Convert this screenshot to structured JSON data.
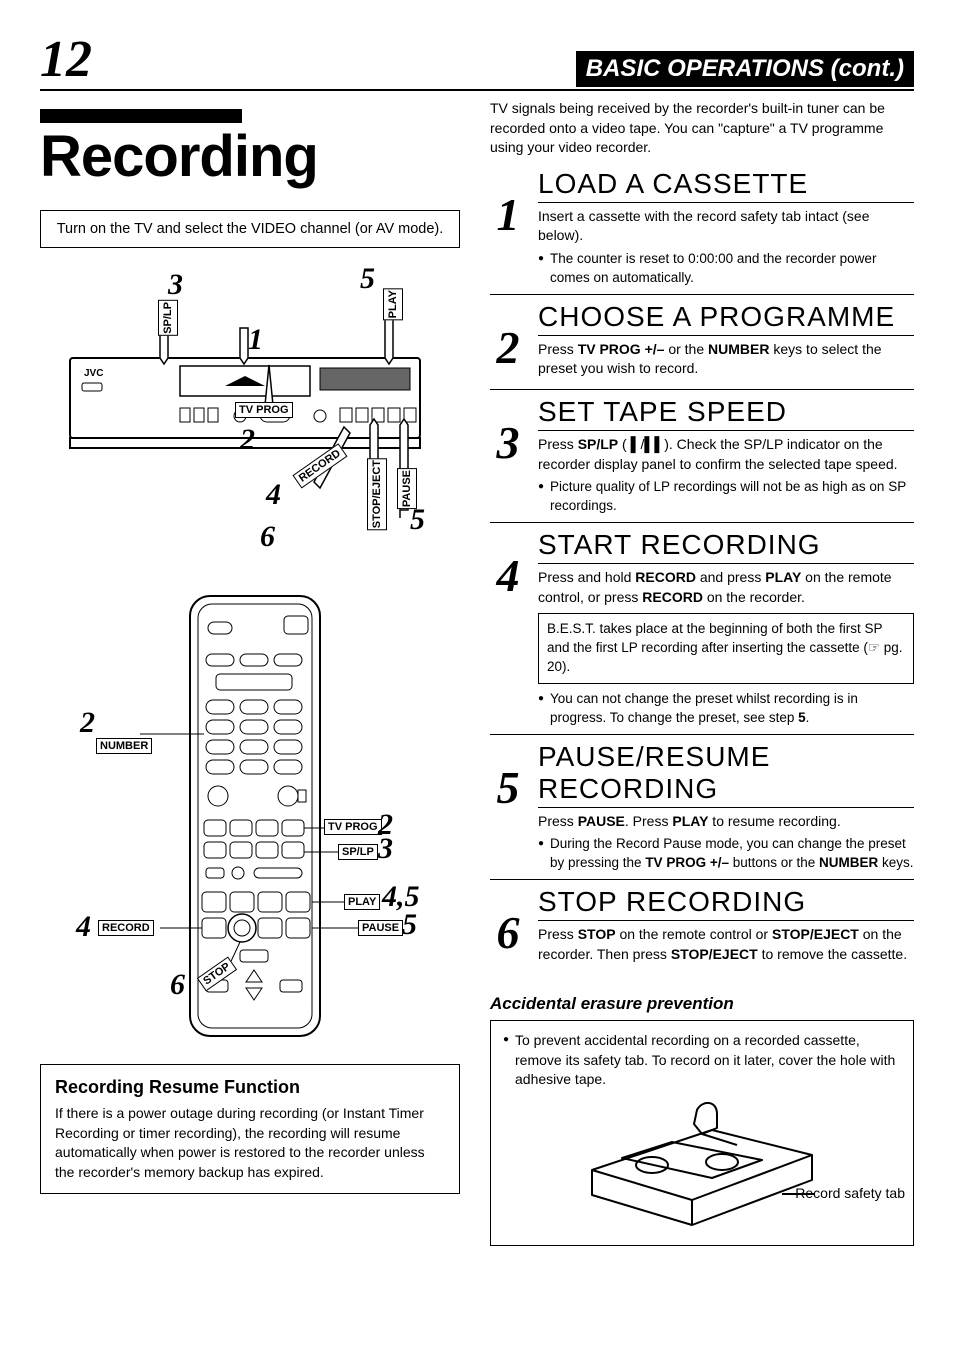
{
  "page_number": "12",
  "header_title": "BASIC OPERATIONS (cont.)",
  "main_title": "Recording",
  "instruction_box": "Turn on the TV and select the VIDEO channel (or AV mode).",
  "intro_paragraph": "TV signals being received by the recorder's built-in tuner can be recorded onto a video tape. You can \"capture\" a TV programme using your video recorder.",
  "vcr_labels": {
    "c1": "1",
    "c2": "2",
    "c3": "3",
    "c4": "4",
    "c5": "5",
    "c5b": "5",
    "c6": "6",
    "brand": "JVC",
    "splp": "SP/LP",
    "play": "PLAY",
    "tvprog": "TV PROG",
    "record": "RECORD",
    "stopeject": "STOP/EJECT",
    "pause": "PAUSE"
  },
  "remote_labels": {
    "c2": "2",
    "c2b": "2",
    "c3": "3",
    "c4": "4",
    "c45": "4,5",
    "c5": "5",
    "c6": "6",
    "number": "NUMBER",
    "tvprog": "TV PROG",
    "splp": "SP/LP",
    "play": "PLAY",
    "pause": "PAUSE",
    "record": "RECORD",
    "stop": "STOP"
  },
  "resume_box": {
    "title": "Recording Resume Function",
    "body": "If there is a power outage during recording (or Instant Timer Recording or timer recording), the recording will resume automatically when power is restored to the recorder unless the recorder's memory backup has expired."
  },
  "steps": [
    {
      "num": "1",
      "title": "LOAD A CASSETTE",
      "text_html": "Insert a cassette with the record safety tab intact (see below).",
      "bullets": [
        "The counter is reset to 0:00:00 and the recorder power comes on automatically."
      ],
      "note": null
    },
    {
      "num": "2",
      "title": "CHOOSE A PROGRAMME",
      "text_html": "Press <b>TV PROG +/–</b> or the <b>NUMBER</b> keys to select the preset you wish to record.",
      "bullets": [],
      "note": null
    },
    {
      "num": "3",
      "title": "SET TAPE SPEED",
      "text_html": "Press <b>SP/LP</b> ( ▌/▌▌). Check the SP/LP indicator on the recorder display panel to confirm the selected tape speed.",
      "bullets": [
        "Picture quality of LP recordings will not be as high as on SP recordings."
      ],
      "note": null
    },
    {
      "num": "4",
      "title": "START RECORDING",
      "text_html": "Press and hold <b>RECORD</b> and press <b>PLAY</b> on the remote control, or press <b>RECORD</b> on the recorder.",
      "bullets": [
        "You can not change the preset whilst recording is in progress. To change the preset, see step <b>5</b>."
      ],
      "note": "B.E.S.T. takes place at the beginning of both the first SP and the first LP recording after inserting the cassette (☞ pg. 20)."
    },
    {
      "num": "5",
      "title": "PAUSE/RESUME RECORDING",
      "text_html": "Press <b>PAUSE</b>. Press <b>PLAY</b> to resume recording.",
      "bullets": [
        "During the Record Pause mode, you can change the preset by pressing the <b>TV PROG +/–</b> buttons or the <b>NUMBER</b> keys."
      ],
      "note": null
    },
    {
      "num": "6",
      "title": "STOP RECORDING",
      "text_html": "Press <b>STOP</b> on the remote control or <b>STOP/EJECT</b> on the recorder. Then press <b>STOP/EJECT</b> to remove the cassette.",
      "bullets": [],
      "note": null
    }
  ],
  "erasure": {
    "title": "Accidental erasure prevention",
    "bullet": "To prevent accidental recording on a recorded cassette, remove its safety tab. To record on it later, cover the hole with adhesive tape.",
    "tab_label": "Record safety tab"
  }
}
